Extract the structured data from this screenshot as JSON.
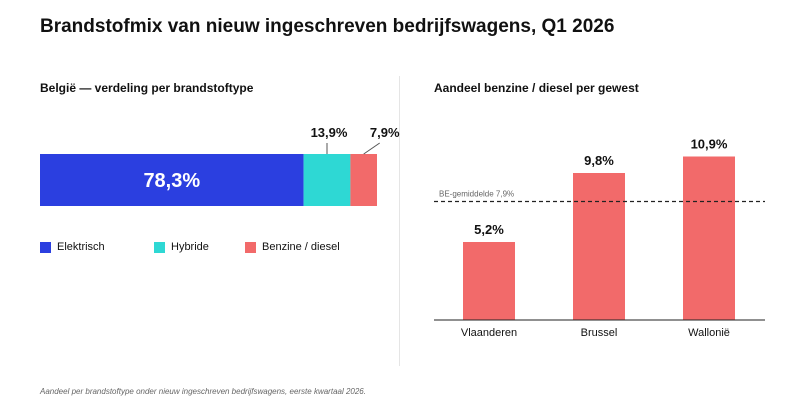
{
  "title": "Brandstofmix van nieuw ingeschreven bedrijfswagens, Q1 2026",
  "footnote": "Aandeel per brandstoftype onder nieuw ingeschreven bedrijfswagens, eerste kwartaal 2026.",
  "chart_data": [
    {
      "type": "bar",
      "orientation": "stacked-horizontal",
      "title": "België — verdeling per brandstoftype",
      "categories": [
        "Elektrisch",
        "Hybride",
        "Benzine / diesel"
      ],
      "values": [
        78.3,
        13.9,
        7.9
      ],
      "labels": [
        "78,3%",
        "13,9%",
        "7,9%"
      ],
      "colors": [
        "#2b3fe0",
        "#2ed8d4",
        "#f26a6a"
      ],
      "legend": "bottom"
    },
    {
      "type": "bar",
      "title": "Aandeel benzine / diesel per gewest",
      "categories": [
        "Vlaanderen",
        "Brussel",
        "Wallonië"
      ],
      "values": [
        5.2,
        9.8,
        10.9
      ],
      "labels": [
        "5,2%",
        "9,8%",
        "10,9%"
      ],
      "color": "#f26a6a",
      "ylim": [
        0,
        12.4
      ],
      "reference_line": {
        "value": 7.9,
        "label": "BE-gemiddelde 7,9%"
      },
      "grid": false
    }
  ]
}
